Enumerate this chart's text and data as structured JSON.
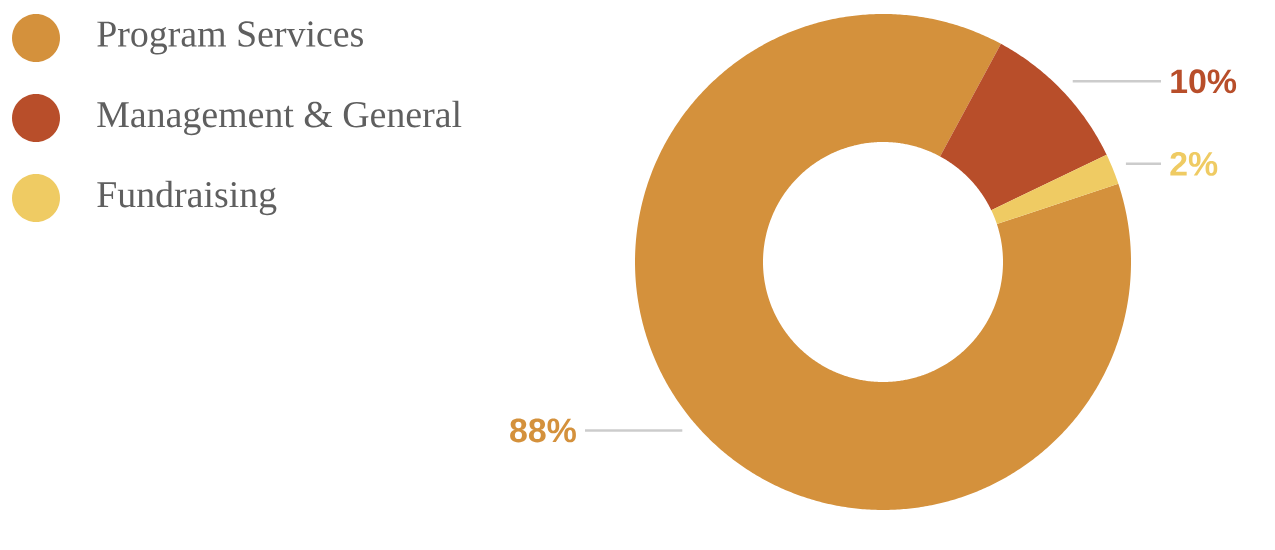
{
  "chart_data": {
    "type": "donut",
    "categories": [
      "Program Services",
      "Management & General",
      "Fundraising"
    ],
    "values": [
      88,
      10,
      2
    ],
    "colors": [
      "#d4913c",
      "#b84e2a",
      "#efcb63"
    ],
    "value_labels": [
      "88%",
      "10%",
      "2%"
    ],
    "legend": "top left"
  }
}
